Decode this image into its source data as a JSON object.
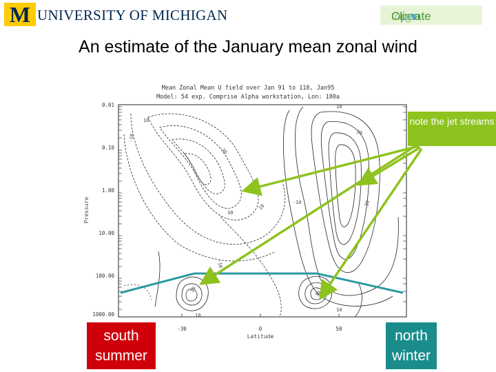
{
  "header": {
    "university_logo_letter": "M",
    "university_name": "UNIVERSITY OF MICHIGAN",
    "openclimate_logo": {
      "part1": "Open",
      "part2": "Climate",
      "part3": ".org"
    }
  },
  "slide": {
    "title": "An estimate of the January mean zonal wind"
  },
  "plot": {
    "title_line1": "Mean Zonal Mean U field over Jan 91 to 118, Jan95",
    "title_line2": "Model: 54 exp. Comprise Alpha workstation, Lon: 180a",
    "y_axis_label": "Pressure",
    "x_axis_label": "Latitude",
    "y_ticks": [
      "0.01",
      "0.10",
      "1.00",
      "10.00",
      "100.00",
      "1000.00"
    ],
    "x_ticks": [
      "-30",
      "0",
      "30"
    ],
    "x_tick_extra": "50",
    "contour_labels": [
      "-10",
      "10",
      "-30",
      "30",
      "10",
      "-10",
      "-10",
      "10",
      "20",
      "30",
      "10",
      "10",
      "30",
      "10"
    ]
  },
  "annotations": {
    "note": "note the jet streams",
    "south_label": "south summer",
    "north_label": "north winter",
    "colors": {
      "note_box": "#8ec21e",
      "arrow": "#8ec21e",
      "south_box": "#d0000a",
      "north_box": "#1a8c8c",
      "tropopause_line": "#2a9aa0"
    }
  }
}
